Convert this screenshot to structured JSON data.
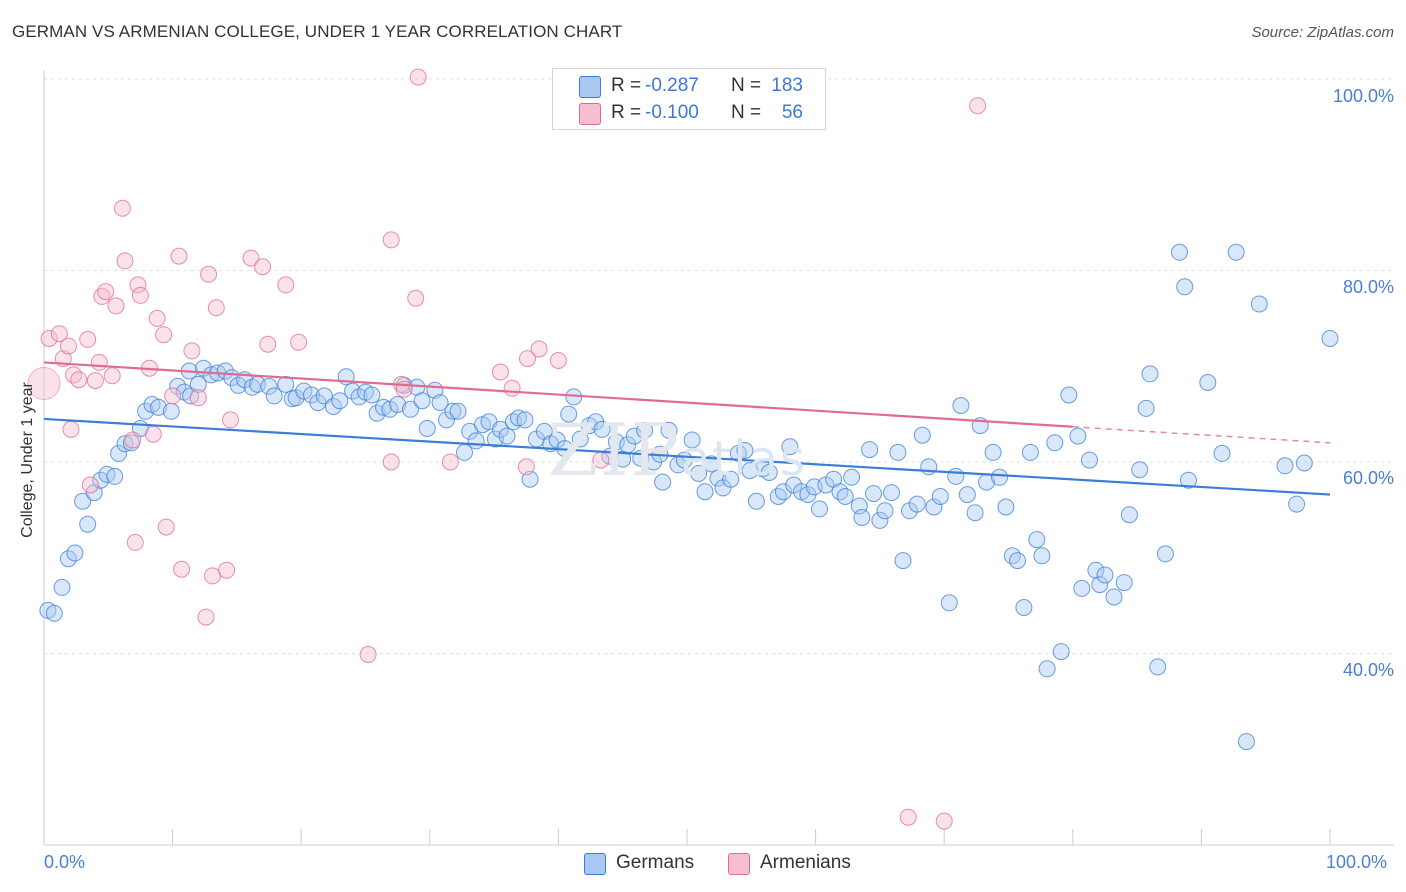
{
  "chart_data": {
    "type": "scatter",
    "title": "GERMAN VS ARMENIAN COLLEGE, UNDER 1 YEAR CORRELATION CHART",
    "source": "Source: ZipAtlas.com",
    "xlabel": "",
    "ylabel": "College, Under 1 year",
    "xlim": [
      0,
      100
    ],
    "ylim": [
      20,
      102
    ],
    "x_tick_labels": [
      "0.0%",
      "100.0%"
    ],
    "y_tick_labels": [
      {
        "value": 100,
        "label": "100.0%"
      },
      {
        "value": 80,
        "label": "80.0%"
      },
      {
        "value": 60,
        "label": "60.0%"
      },
      {
        "value": 40,
        "label": "40.0%"
      }
    ],
    "grid": true,
    "legend_position": "top-center",
    "watermark": {
      "main": "ZIP",
      "secondary": "atlas"
    },
    "series": [
      {
        "name": "Germans",
        "color": "#3b7dd8",
        "fill": "#a9c9f2",
        "r": "-0.287",
        "n": "183",
        "trend": {
          "x": [
            0,
            100
          ],
          "y": [
            64.5,
            56.6
          ],
          "dashed_from": null
        },
        "points": [
          [
            0.3,
            44.5
          ],
          [
            0.8,
            44.2
          ],
          [
            1.4,
            46.9
          ],
          [
            1.9,
            49.9
          ],
          [
            2.4,
            50.5
          ],
          [
            3,
            55.9
          ],
          [
            3.4,
            53.5
          ],
          [
            3.9,
            56.8
          ],
          [
            4.4,
            58.1
          ],
          [
            4.9,
            58.7
          ],
          [
            5.5,
            58.5
          ],
          [
            5.8,
            60.9
          ],
          [
            6.3,
            61.9
          ],
          [
            6.8,
            62.0
          ],
          [
            7.5,
            63.5
          ],
          [
            7.9,
            65.3
          ],
          [
            8.4,
            66.0
          ],
          [
            8.9,
            65.7
          ],
          [
            9.9,
            65.3
          ],
          [
            10.4,
            67.9
          ],
          [
            10.9,
            67.3
          ],
          [
            11.3,
            69.5
          ],
          [
            11.4,
            66.9
          ],
          [
            12.0,
            68.1
          ],
          [
            12.4,
            69.8
          ],
          [
            13.0,
            69.1
          ],
          [
            13.5,
            69.3
          ],
          [
            14.1,
            69.5
          ],
          [
            14.6,
            68.8
          ],
          [
            15.1,
            68.0
          ],
          [
            15.6,
            68.6
          ],
          [
            16.2,
            67.8
          ],
          [
            16.6,
            68.1
          ],
          [
            17.5,
            67.9
          ],
          [
            17.9,
            66.9
          ],
          [
            18.8,
            68.1
          ],
          [
            19.3,
            66.6
          ],
          [
            19.6,
            66.7
          ],
          [
            20.2,
            67.4
          ],
          [
            20.8,
            67.0
          ],
          [
            21.3,
            66.2
          ],
          [
            21.8,
            66.9
          ],
          [
            22.5,
            65.8
          ],
          [
            23.0,
            66.4
          ],
          [
            23.5,
            68.9
          ],
          [
            24.0,
            67.4
          ],
          [
            24.5,
            66.8
          ],
          [
            25.0,
            67.3
          ],
          [
            25.5,
            67.0
          ],
          [
            25.9,
            65.1
          ],
          [
            26.4,
            65.7
          ],
          [
            26.9,
            65.5
          ],
          [
            27.5,
            66.0
          ],
          [
            28.0,
            68.0
          ],
          [
            28.5,
            65.5
          ],
          [
            29.0,
            67.8
          ],
          [
            29.4,
            66.4
          ],
          [
            29.8,
            63.5
          ],
          [
            30.4,
            67.5
          ],
          [
            30.8,
            66.2
          ],
          [
            31.3,
            64.4
          ],
          [
            31.8,
            65.3
          ],
          [
            32.2,
            65.3
          ],
          [
            32.7,
            61.0
          ],
          [
            33.1,
            63.2
          ],
          [
            33.6,
            62.2
          ],
          [
            34.1,
            63.9
          ],
          [
            34.6,
            64.2
          ],
          [
            35.1,
            62.4
          ],
          [
            35.5,
            63.4
          ],
          [
            36.0,
            62.7
          ],
          [
            36.5,
            64.2
          ],
          [
            36.9,
            64.6
          ],
          [
            37.4,
            64.4
          ],
          [
            37.8,
            58.2
          ],
          [
            38.3,
            62.4
          ],
          [
            38.9,
            63.2
          ],
          [
            39.4,
            61.9
          ],
          [
            39.9,
            62.3
          ],
          [
            40.5,
            61.4
          ],
          [
            40.8,
            65.0
          ],
          [
            41.2,
            66.8
          ],
          [
            41.7,
            62.4
          ],
          [
            42.4,
            63.8
          ],
          [
            42.9,
            64.2
          ],
          [
            43.4,
            63.4
          ],
          [
            44.0,
            60.6
          ],
          [
            44.5,
            62.1
          ],
          [
            45.0,
            60.3
          ],
          [
            45.4,
            61.8
          ],
          [
            45.9,
            62.7
          ],
          [
            46.4,
            60.4
          ],
          [
            46.7,
            63.3
          ],
          [
            47.4,
            60.0
          ],
          [
            47.9,
            60.8
          ],
          [
            48.1,
            57.9
          ],
          [
            48.6,
            63.3
          ],
          [
            49.3,
            59.7
          ],
          [
            49.8,
            60.2
          ],
          [
            50.4,
            62.3
          ],
          [
            50.9,
            58.8
          ],
          [
            51.4,
            56.9
          ],
          [
            51.9,
            59.8
          ],
          [
            52.4,
            58.3
          ],
          [
            52.8,
            57.3
          ],
          [
            53.4,
            58.2
          ],
          [
            54.0,
            60.9
          ],
          [
            54.5,
            61.2
          ],
          [
            54.9,
            59.1
          ],
          [
            55.4,
            55.9
          ],
          [
            55.9,
            59.3
          ],
          [
            56.4,
            58.9
          ],
          [
            57.1,
            56.4
          ],
          [
            57.5,
            56.9
          ],
          [
            58.0,
            61.6
          ],
          [
            58.3,
            57.6
          ],
          [
            58.9,
            56.9
          ],
          [
            59.4,
            56.6
          ],
          [
            59.9,
            57.4
          ],
          [
            60.3,
            55.1
          ],
          [
            60.8,
            57.6
          ],
          [
            61.4,
            58.2
          ],
          [
            61.9,
            56.9
          ],
          [
            62.3,
            56.4
          ],
          [
            62.8,
            58.4
          ],
          [
            63.4,
            55.4
          ],
          [
            63.6,
            54.2
          ],
          [
            64.2,
            61.3
          ],
          [
            64.5,
            56.7
          ],
          [
            65.0,
            53.9
          ],
          [
            65.4,
            54.9
          ],
          [
            65.9,
            56.8
          ],
          [
            66.4,
            61.0
          ],
          [
            66.8,
            49.7
          ],
          [
            67.3,
            54.9
          ],
          [
            67.9,
            55.6
          ],
          [
            68.3,
            62.8
          ],
          [
            68.8,
            59.5
          ],
          [
            69.2,
            55.3
          ],
          [
            69.7,
            56.4
          ],
          [
            70.4,
            45.3
          ],
          [
            70.9,
            58.5
          ],
          [
            71.3,
            65.9
          ],
          [
            71.8,
            56.6
          ],
          [
            72.4,
            54.7
          ],
          [
            72.8,
            63.8
          ],
          [
            73.3,
            57.9
          ],
          [
            73.8,
            61.0
          ],
          [
            74.3,
            58.4
          ],
          [
            74.8,
            55.3
          ],
          [
            75.3,
            50.2
          ],
          [
            75.7,
            49.7
          ],
          [
            76.2,
            44.8
          ],
          [
            76.7,
            61.0
          ],
          [
            77.2,
            51.9
          ],
          [
            77.6,
            50.2
          ],
          [
            78.0,
            38.4
          ],
          [
            78.6,
            62.0
          ],
          [
            79.1,
            40.2
          ],
          [
            79.7,
            67.0
          ],
          [
            80.4,
            62.7
          ],
          [
            80.7,
            46.8
          ],
          [
            81.3,
            60.2
          ],
          [
            81.8,
            48.7
          ],
          [
            82.1,
            47.2
          ],
          [
            82.5,
            48.2
          ],
          [
            83.2,
            45.9
          ],
          [
            84.0,
            47.4
          ],
          [
            84.4,
            54.5
          ],
          [
            85.2,
            59.2
          ],
          [
            85.7,
            65.6
          ],
          [
            86.0,
            69.2
          ],
          [
            86.6,
            38.6
          ],
          [
            87.2,
            50.4
          ],
          [
            88.3,
            81.9
          ],
          [
            88.7,
            78.3
          ],
          [
            89.0,
            58.1
          ],
          [
            90.5,
            68.3
          ],
          [
            91.6,
            60.9
          ],
          [
            92.7,
            81.9
          ],
          [
            93.5,
            30.8
          ],
          [
            94.5,
            76.5
          ],
          [
            96.5,
            59.6
          ],
          [
            97.4,
            55.6
          ],
          [
            98.0,
            59.9
          ],
          [
            100.0,
            72.9
          ]
        ]
      },
      {
        "name": "Armenians",
        "color": "#e26a92",
        "fill": "#f5bfd1",
        "r": "-0.100",
        "n": "56",
        "trend": {
          "x": [
            0,
            100
          ],
          "y": [
            70.4,
            62.0
          ],
          "dashed_from": 80
        },
        "points": [
          [
            0.4,
            72.9
          ],
          [
            1.2,
            73.4
          ],
          [
            1.5,
            70.8
          ],
          [
            1.9,
            72.1
          ],
          [
            2.1,
            63.4
          ],
          [
            2.3,
            69.1
          ],
          [
            2.7,
            68.6
          ],
          [
            3.4,
            72.8
          ],
          [
            3.6,
            57.6
          ],
          [
            4.0,
            68.5
          ],
          [
            4.3,
            70.4
          ],
          [
            4.5,
            77.3
          ],
          [
            4.8,
            77.8
          ],
          [
            5.3,
            69.0
          ],
          [
            5.6,
            76.3
          ],
          [
            6.1,
            86.5
          ],
          [
            6.3,
            81.0
          ],
          [
            6.9,
            62.3
          ],
          [
            7.1,
            51.6
          ],
          [
            7.3,
            78.5
          ],
          [
            7.5,
            77.4
          ],
          [
            8.2,
            69.8
          ],
          [
            8.5,
            62.9
          ],
          [
            8.8,
            75.0
          ],
          [
            9.3,
            73.3
          ],
          [
            9.5,
            53.2
          ],
          [
            10.0,
            66.9
          ],
          [
            10.5,
            81.5
          ],
          [
            10.7,
            48.8
          ],
          [
            11.5,
            71.6
          ],
          [
            12.0,
            66.7
          ],
          [
            12.6,
            43.8
          ],
          [
            12.8,
            79.6
          ],
          [
            13.1,
            48.1
          ],
          [
            13.4,
            76.1
          ],
          [
            14.2,
            48.7
          ],
          [
            14.5,
            64.4
          ],
          [
            16.1,
            81.3
          ],
          [
            17.0,
            80.4
          ],
          [
            17.4,
            72.3
          ],
          [
            18.8,
            78.5
          ],
          [
            19.8,
            72.5
          ],
          [
            25.2,
            39.9
          ],
          [
            27.0,
            83.2
          ],
          [
            27.0,
            60.0
          ],
          [
            27.8,
            68.1
          ],
          [
            28.0,
            67.6
          ],
          [
            28.9,
            77.1
          ],
          [
            29.1,
            100.2
          ],
          [
            31.6,
            60.0
          ],
          [
            35.5,
            69.4
          ],
          [
            36.4,
            67.7
          ],
          [
            37.5,
            59.5
          ],
          [
            37.6,
            70.8
          ],
          [
            38.5,
            71.8
          ],
          [
            40.0,
            70.6
          ],
          [
            43.3,
            60.2
          ],
          [
            67.2,
            22.9
          ],
          [
            70.0,
            22.5
          ],
          [
            72.6,
            97.2
          ]
        ]
      }
    ]
  }
}
